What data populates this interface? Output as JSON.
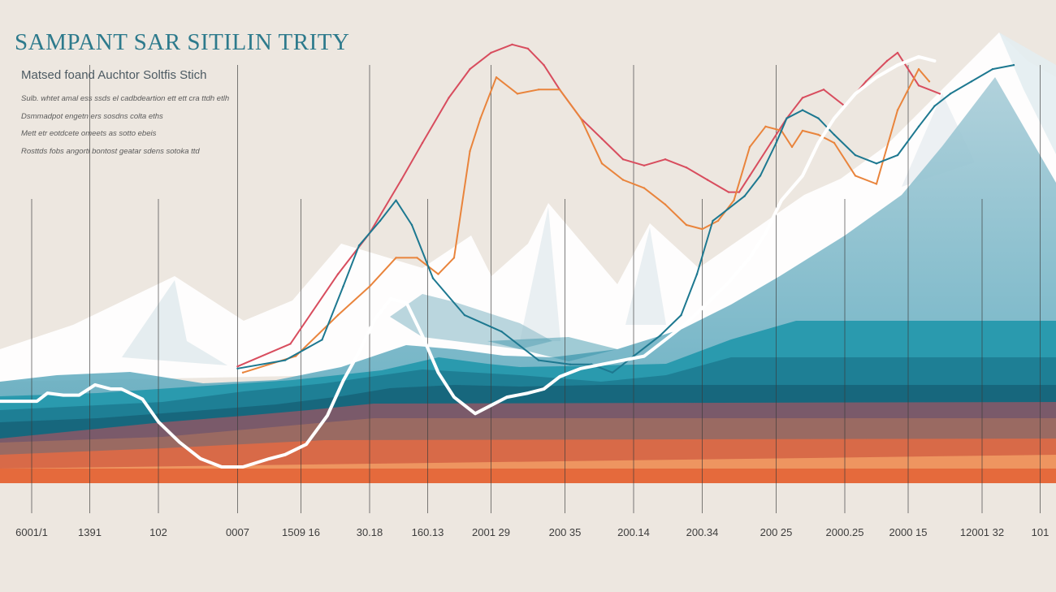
{
  "header": {
    "title": "SAMPANT SAR SITILIN TRITY",
    "subtitle": "Matsed foand Auchtor Soltfis Stich",
    "notes": [
      "Sulb. whtet amal ess ssds el cadbdeartion ett ett cra ttdh etlh",
      "Dsmmadpot engetn ers sosdns colta eths",
      "Mett etr eotdcete omeets as sotto ebeis",
      "Rosttds fobs angorti bontost geatar sdens sotoka ttd"
    ]
  },
  "colors": {
    "background": "#ede7e0",
    "title": "#2d7a8c",
    "mountain_snow": "#ffffff",
    "mountain_shadow": "#dfe8ec",
    "line_red": "#d84d5e",
    "line_orange": "#e9843c",
    "line_teal": "#1d7890",
    "line_white": "#ffffff",
    "gridline": "#3a3a3a"
  },
  "chart_data": {
    "type": "line",
    "title": "SAMPANT SAR SITILIN TRITY",
    "xlabel": "",
    "ylabel": "",
    "ylim": [
      0,
      100
    ],
    "grid": "vertical",
    "x_tick_labels": [
      "6001/1",
      "1391",
      "102",
      "0007",
      "1509 16",
      "30.18",
      "160.13",
      "2001 29",
      "200 35",
      "200.14",
      "200.34",
      "200 25",
      "2000.25",
      "2000 15",
      "12001 32",
      "101"
    ],
    "x_tick_positions": [
      3,
      8.5,
      15,
      22.5,
      28.5,
      35,
      40.5,
      46.5,
      53.5,
      60,
      66.5,
      73.5,
      80,
      86,
      93,
      98.5
    ],
    "series": [
      {
        "name": "red",
        "color": "#d84d5e",
        "x": [
          22.5,
          27.5,
          32,
          35,
          38,
          40,
          42.5,
          44.5,
          46.5,
          48.5,
          50,
          51.5,
          53,
          55,
          57,
          59,
          61,
          63,
          65,
          67,
          69,
          70,
          71,
          73,
          74.5,
          76,
          78,
          80,
          82,
          84,
          85,
          87,
          89
        ],
        "y": [
          25.5,
          31,
          48,
          58,
          71,
          80,
          91,
          98,
          102,
          104,
          103,
          99,
          93,
          86,
          81,
          76,
          74.5,
          76,
          74,
          71,
          68,
          68,
          72,
          80,
          86,
          91,
          93,
          89,
          95,
          100,
          102,
          94,
          92
        ]
      },
      {
        "name": "orange",
        "color": "#e9843c",
        "x": [
          23,
          28,
          32,
          35,
          37.5,
          39.5,
          41.5,
          43,
          44.5,
          45.5,
          47,
          49,
          51,
          53,
          55,
          57,
          59,
          61,
          63,
          65,
          66.5,
          68,
          69.5,
          71,
          72.5,
          74,
          75,
          76,
          77.5,
          79,
          81,
          83,
          85,
          87,
          88
        ],
        "y": [
          24,
          28,
          38,
          45,
          52,
          52,
          48,
          52,
          78,
          86,
          96,
          92,
          93,
          93,
          86,
          75,
          71,
          69,
          65,
          60,
          59,
          61,
          66,
          79,
          84,
          83,
          79,
          83,
          82,
          80,
          72,
          70,
          88,
          98,
          95
        ]
      },
      {
        "name": "teal",
        "color": "#1d7890",
        "x": [
          22.5,
          27,
          30.5,
          32.5,
          34,
          36,
          37.5,
          39,
          41,
          44,
          47.5,
          51,
          54,
          56,
          58,
          60,
          62.5,
          64.5,
          66,
          67.5,
          69,
          70.5,
          72,
          73.5,
          74.5,
          76,
          77.5,
          79,
          81,
          83,
          85,
          87,
          88.5,
          90,
          92,
          94,
          96
        ],
        "y": [
          25,
          27,
          32,
          45,
          55,
          61,
          66,
          60,
          47,
          38,
          34,
          27,
          26,
          26,
          24,
          28,
          33,
          38,
          48,
          61,
          64,
          67,
          72,
          80,
          86,
          88,
          86,
          82,
          77,
          75,
          77,
          84,
          89,
          92,
          95,
          98,
          99
        ]
      },
      {
        "name": "white",
        "color": "#ffffff",
        "x": [
          0,
          3.5,
          4.5,
          6,
          7.5,
          9,
          10.5,
          11.5,
          13.5,
          15,
          17,
          19,
          21,
          23,
          25.5,
          27,
          29,
          31,
          32.5,
          34,
          35.5,
          37,
          38.5,
          40,
          41.5,
          43,
          45,
          46.5,
          48,
          50,
          51.5,
          53,
          55,
          57,
          59,
          61,
          63,
          65,
          67,
          69,
          71,
          72.5,
          74,
          76,
          77.5,
          79,
          81,
          83,
          85,
          87,
          88.5
        ],
        "y": [
          17,
          17,
          19,
          18.5,
          18.5,
          21,
          20,
          20,
          17.5,
          12,
          7,
          3,
          1,
          1,
          3,
          4,
          6.5,
          13.5,
          22,
          29,
          37,
          42,
          41,
          33,
          24,
          18,
          14,
          16,
          18,
          19,
          20,
          23,
          25,
          26,
          27,
          28,
          32,
          36,
          41,
          46,
          52,
          58,
          66,
          72,
          80,
          86,
          92,
          96,
          99,
          101,
          100
        ]
      }
    ]
  }
}
